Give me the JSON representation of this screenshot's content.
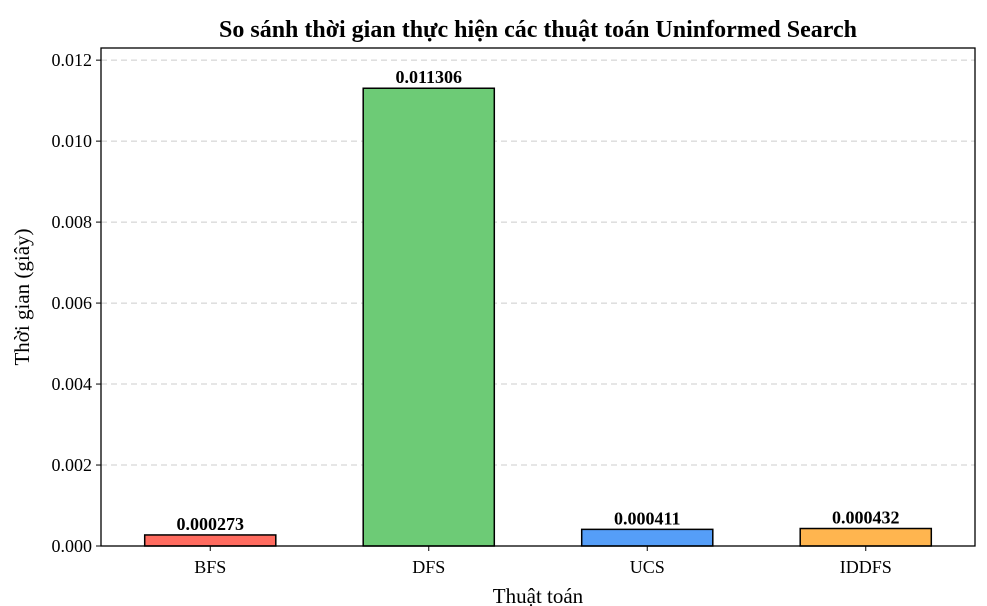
{
  "chart_data": {
    "type": "bar",
    "title": "So sánh thời gian thực hiện các thuật toán Uninformed Search",
    "xlabel": "Thuật toán",
    "ylabel": "Thời gian (giây)",
    "categories": [
      "BFS",
      "DFS",
      "UCS",
      "IDDFS"
    ],
    "values": [
      0.000273,
      0.011306,
      0.000411,
      0.000432
    ],
    "data_labels": [
      "0.000273",
      "0.011306",
      "0.000411",
      "0.000432"
    ],
    "colors": [
      "#ff6b5f",
      "#6dcb76",
      "#559ef8",
      "#ffb54f"
    ],
    "edge_color": "#000000",
    "ylim": [
      0,
      0.0123
    ],
    "yticks": [
      0.0,
      0.002,
      0.004,
      0.006,
      0.008,
      0.01,
      0.012
    ],
    "ytick_labels": [
      "0.000",
      "0.002",
      "0.004",
      "0.006",
      "0.008",
      "0.010",
      "0.012"
    ],
    "grid": {
      "axis": "y",
      "style": "dashed",
      "color": "#cccccc"
    },
    "legend": "none"
  }
}
